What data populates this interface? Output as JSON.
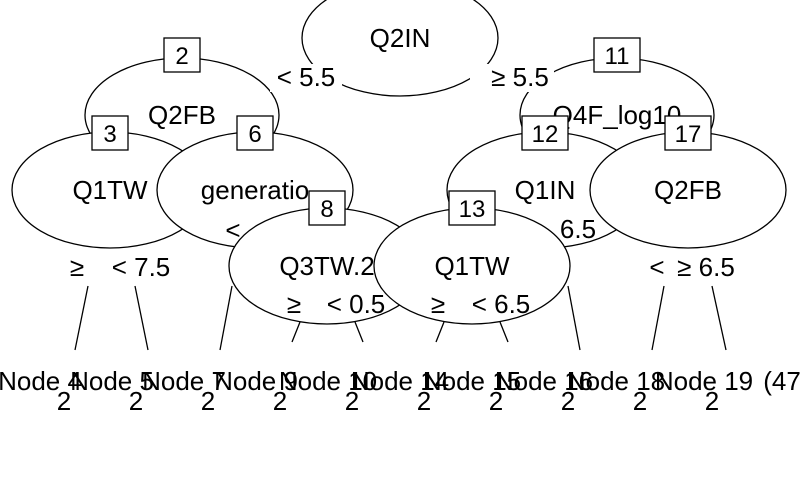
{
  "tree": {
    "nodes": [
      {
        "id": "1",
        "label": "Q2IN"
      },
      {
        "id": "2",
        "label": "Q2FB"
      },
      {
        "id": "3",
        "label": "Q1TW"
      },
      {
        "id": "6",
        "label": "generatio"
      },
      {
        "id": "8",
        "label": "Q3TW.2"
      },
      {
        "id": "11",
        "label": "Q4F_log10"
      },
      {
        "id": "12",
        "label": "Q1IN"
      },
      {
        "id": "13",
        "label": "Q1TW"
      },
      {
        "id": "17",
        "label": "Q2FB"
      }
    ],
    "splits": {
      "root_left": "< 5.5",
      "root_right": "≥ 5.5",
      "n3_left": "≥",
      "n3_right": "< 7.5",
      "n6_left": "<",
      "n8_left": "≥",
      "n8_right": "< 0.5",
      "n13_left": "≥",
      "n13_right": "< 6.5",
      "n12_right": "6.5",
      "n17_left": "<",
      "n17_right": "≥ 6.5"
    },
    "leaves": [
      {
        "name": "Node 4",
        "value": "2"
      },
      {
        "name": "Node 5",
        "value": "2"
      },
      {
        "name": "Node 7",
        "value": "2"
      },
      {
        "name": "Node 9",
        "value": "2"
      },
      {
        "name": "Node 10",
        "value": "2"
      },
      {
        "name": "Node 14",
        "value": "2"
      },
      {
        "name": "Node 15",
        "value": "2"
      },
      {
        "name": "Node 16",
        "value": "2"
      },
      {
        "name": "Node 18",
        "value": "2"
      },
      {
        "name": "Node 19",
        "value": "2"
      }
    ],
    "overflow_text": "(47"
  }
}
